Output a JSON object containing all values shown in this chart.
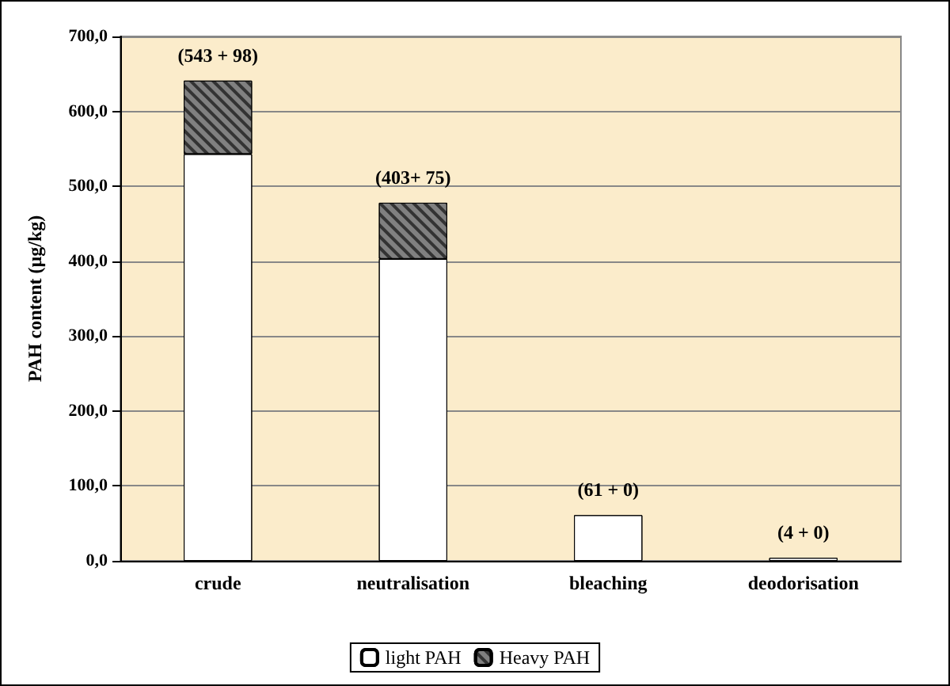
{
  "chart_data": {
    "type": "bar",
    "stacked": true,
    "ylabel": "PAH content (µg/kg)",
    "categories": [
      "crude",
      "neutralisation",
      "bleaching",
      "deodorisation"
    ],
    "series": [
      {
        "name": "light PAH",
        "color": "#ffffff",
        "values": [
          543,
          403,
          61,
          4
        ]
      },
      {
        "name": "Heavy PAH",
        "color": "#808080",
        "values": [
          98,
          75,
          0,
          0
        ]
      }
    ],
    "ylim": [
      0,
      700
    ],
    "yticks": [
      {
        "value": 0,
        "label": "0,0"
      },
      {
        "value": 100,
        "label": "100,0"
      },
      {
        "value": 200,
        "label": "200,0"
      },
      {
        "value": 300,
        "label": "300,0"
      },
      {
        "value": 400,
        "label": "400,0"
      },
      {
        "value": 500,
        "label": "500,0"
      },
      {
        "value": 600,
        "label": "600,0"
      },
      {
        "value": 700,
        "label": "700,0"
      }
    ],
    "annotations": [
      {
        "text": "(543 + 98)",
        "x": "crude",
        "y": 641
      },
      {
        "text": "(403+ 75)",
        "x": "neutralisation",
        "y": 478
      },
      {
        "text": "(61 + 0)",
        "x": "bleaching",
        "y": 61
      },
      {
        "text": "(4 + 0)",
        "x": "deodorisation",
        "y": 4
      }
    ],
    "grid": "y",
    "legend": "bottom"
  }
}
